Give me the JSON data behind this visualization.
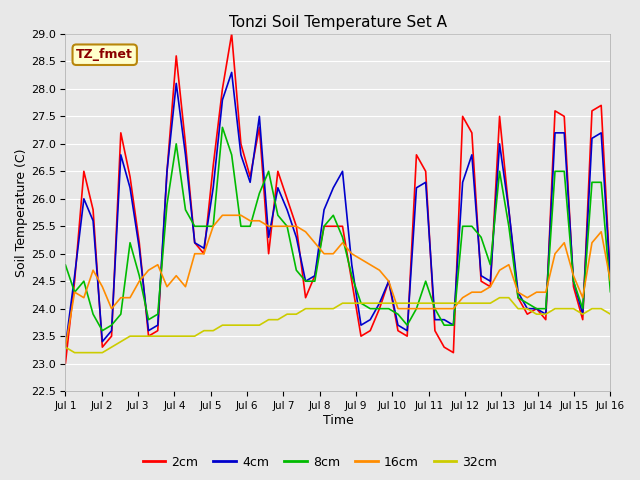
{
  "title": "Tonzi Soil Temperature Set A",
  "xlabel": "Time",
  "ylabel": "Soil Temperature (C)",
  "ylim": [
    22.5,
    29.0
  ],
  "yticks": [
    22.5,
    23.0,
    23.5,
    24.0,
    24.5,
    25.0,
    25.5,
    26.0,
    26.5,
    27.0,
    27.5,
    28.0,
    28.5,
    29.0
  ],
  "xlim": [
    0,
    15
  ],
  "xtick_labels": [
    "Jul 1",
    "Jul 2",
    "Jul 3",
    "Jul 4",
    "Jul 5",
    "Jul 6",
    "Jul 7",
    "Jul 8",
    "Jul 9",
    "Jul 10",
    "Jul 11",
    "Jul 12",
    "Jul 13",
    "Jul 14",
    "Jul 15",
    "Jul 16"
  ],
  "xtick_positions": [
    0,
    1,
    2,
    3,
    4,
    5,
    6,
    7,
    8,
    9,
    10,
    11,
    12,
    13,
    14,
    15
  ],
  "annotation_text": "TZ_fmet",
  "annotation_color": "#8B0000",
  "annotation_bg": "#FFFFCC",
  "annotation_border": "#B8860B",
  "legend_entries": [
    "2cm",
    "4cm",
    "8cm",
    "16cm",
    "32cm"
  ],
  "line_colors": [
    "#FF0000",
    "#0000CC",
    "#00BB00",
    "#FF8C00",
    "#CCCC00"
  ],
  "line_widths": [
    1.2,
    1.2,
    1.2,
    1.2,
    1.2
  ],
  "background_color": "#E8E8E8",
  "title_fontsize": 11,
  "x2cm": [
    23.0,
    24.5,
    26.5,
    25.8,
    23.3,
    23.5,
    27.2,
    26.4,
    25.2,
    23.5,
    23.6,
    26.5,
    28.6,
    27.0,
    25.2,
    25.0,
    26.6,
    28.0,
    29.0,
    27.0,
    26.4,
    27.3,
    25.0,
    26.5,
    26.0,
    25.5,
    24.2,
    24.6,
    25.5,
    25.5,
    25.5,
    24.5,
    23.5,
    23.6,
    24.0,
    24.5,
    23.6,
    23.5,
    26.8,
    26.5,
    23.6,
    23.3,
    23.2,
    27.5,
    27.2,
    24.5,
    24.4,
    27.5,
    25.8,
    24.2,
    23.9,
    24.0,
    23.8,
    27.6,
    27.5,
    24.4,
    23.8,
    27.6,
    27.7,
    24.5
  ],
  "x4cm": [
    23.3,
    24.6,
    26.0,
    25.6,
    23.4,
    23.6,
    26.8,
    26.2,
    25.1,
    23.6,
    23.7,
    26.5,
    28.1,
    26.8,
    25.2,
    25.1,
    26.2,
    27.8,
    28.3,
    26.8,
    26.3,
    27.5,
    25.3,
    26.2,
    25.8,
    25.3,
    24.5,
    24.6,
    25.8,
    26.2,
    26.5,
    24.8,
    23.7,
    23.8,
    24.1,
    24.5,
    23.7,
    23.6,
    26.2,
    26.3,
    23.8,
    23.8,
    23.7,
    26.3,
    26.8,
    24.6,
    24.5,
    27.0,
    25.8,
    24.3,
    24.0,
    24.0,
    23.9,
    27.2,
    27.2,
    24.5,
    23.9,
    27.1,
    27.2,
    24.5
  ],
  "x8cm": [
    24.8,
    24.3,
    24.5,
    23.9,
    23.6,
    23.7,
    23.9,
    25.2,
    24.6,
    23.8,
    23.9,
    25.9,
    27.0,
    25.8,
    25.5,
    25.5,
    25.5,
    27.3,
    26.8,
    25.5,
    25.5,
    26.1,
    26.5,
    25.7,
    25.5,
    24.7,
    24.5,
    24.5,
    25.5,
    25.7,
    25.3,
    24.6,
    24.1,
    24.0,
    24.0,
    24.0,
    23.9,
    23.7,
    24.0,
    24.5,
    24.0,
    23.7,
    23.7,
    25.5,
    25.5,
    25.3,
    24.8,
    26.5,
    25.5,
    24.2,
    24.1,
    24.0,
    24.0,
    26.5,
    26.5,
    24.5,
    24.0,
    26.3,
    26.3,
    24.3
  ],
  "x16cm": [
    23.3,
    24.3,
    24.2,
    24.7,
    24.4,
    24.0,
    24.2,
    24.2,
    24.5,
    24.7,
    24.8,
    24.4,
    24.6,
    24.4,
    25.0,
    25.0,
    25.5,
    25.7,
    25.7,
    25.7,
    25.6,
    25.6,
    25.5,
    25.5,
    25.5,
    25.5,
    25.4,
    25.2,
    25.0,
    25.0,
    25.2,
    25.0,
    24.9,
    24.8,
    24.7,
    24.5,
    24.0,
    24.0,
    24.0,
    24.0,
    24.0,
    24.0,
    24.0,
    24.2,
    24.3,
    24.3,
    24.4,
    24.7,
    24.8,
    24.3,
    24.2,
    24.3,
    24.3,
    25.0,
    25.2,
    24.6,
    24.2,
    25.2,
    25.4,
    24.5
  ],
  "x32cm": [
    23.3,
    23.2,
    23.2,
    23.2,
    23.2,
    23.3,
    23.4,
    23.5,
    23.5,
    23.5,
    23.5,
    23.5,
    23.5,
    23.5,
    23.5,
    23.6,
    23.6,
    23.7,
    23.7,
    23.7,
    23.7,
    23.7,
    23.8,
    23.8,
    23.9,
    23.9,
    24.0,
    24.0,
    24.0,
    24.0,
    24.1,
    24.1,
    24.1,
    24.1,
    24.1,
    24.1,
    24.1,
    24.1,
    24.1,
    24.1,
    24.1,
    24.1,
    24.1,
    24.1,
    24.1,
    24.1,
    24.1,
    24.2,
    24.2,
    24.0,
    24.0,
    23.9,
    23.9,
    24.0,
    24.0,
    24.0,
    23.9,
    24.0,
    24.0,
    23.9
  ]
}
